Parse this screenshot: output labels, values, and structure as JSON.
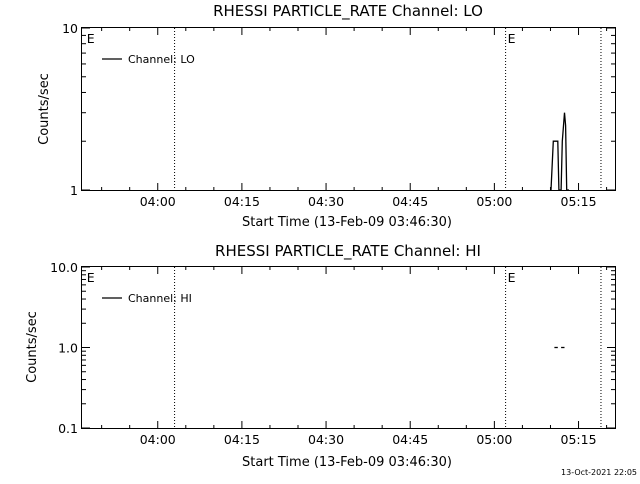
{
  "footer_timestamp": "13-Oct-2021 22:05",
  "chart_data": [
    {
      "type": "line",
      "title": "RHESSI PARTICLE_RATE Channel: LO",
      "xlabel": "Start Time (13-Feb-09 03:46:30)",
      "ylabel": "Counts/sec",
      "yscale": "log",
      "ylim": [
        1,
        10
      ],
      "ytick_values": [
        1,
        10
      ],
      "ytick_labels": [
        "1",
        "10"
      ],
      "xlim_minutes": [
        0,
        95
      ],
      "xtick_labels": [
        "04:00",
        "04:15",
        "04:30",
        "04:45",
        "05:00",
        "05:15"
      ],
      "xtick_minutes": [
        13.5,
        28.5,
        43.5,
        58.5,
        73.5,
        88.5
      ],
      "minor_tick_step_minutes": 5,
      "vlines_minutes": [
        16.5,
        75.5,
        92.5
      ],
      "flags": [
        {
          "label": "E",
          "minute": 0.5
        },
        {
          "label": "E",
          "minute": 75.5
        }
      ],
      "legend": {
        "entries": [
          "Channel: LO"
        ],
        "position": "top-left"
      },
      "series": [
        {
          "name": "Channel: LO",
          "x": [
            83.6,
            84.0,
            84.4,
            84.8,
            85.0,
            85.2,
            85.4,
            85.6,
            86.0,
            86.2,
            86.4,
            86.6,
            86.8
          ],
          "y": [
            1.0,
            2.0,
            2.0,
            2.0,
            1.0,
            1.0,
            1.0,
            2.0,
            3.0,
            2.5,
            1.0,
            1.0,
            1.0
          ]
        }
      ],
      "grid": false
    },
    {
      "type": "line",
      "title": "RHESSI PARTICLE_RATE Channel: HI",
      "xlabel": "Start Time (13-Feb-09 03:46:30)",
      "ylabel": "Counts/sec",
      "yscale": "log",
      "ylim": [
        0.1,
        10
      ],
      "ytick_values": [
        0.1,
        1,
        10
      ],
      "ytick_labels": [
        "0.1",
        "1.0",
        "10.0"
      ],
      "xlim_minutes": [
        0,
        95
      ],
      "xtick_labels": [
        "04:00",
        "04:15",
        "04:30",
        "04:45",
        "05:00",
        "05:15"
      ],
      "xtick_minutes": [
        13.5,
        28.5,
        43.5,
        58.5,
        73.5,
        88.5
      ],
      "minor_tick_step_minutes": 5,
      "vlines_minutes": [
        16.5,
        75.5,
        92.5
      ],
      "flags": [
        {
          "label": "E",
          "minute": 0.5
        },
        {
          "label": "E",
          "minute": 75.5
        }
      ],
      "legend": {
        "entries": [
          "Channel: HI"
        ],
        "position": "top-left"
      },
      "series": [
        {
          "name": "Channel: HI",
          "segments": [
            {
              "x": [
                84.2,
                84.8
              ],
              "y": [
                1.0,
                1.0
              ]
            },
            {
              "x": [
                85.4,
                86.0
              ],
              "y": [
                1.0,
                1.0
              ]
            }
          ]
        }
      ],
      "grid": false
    }
  ]
}
